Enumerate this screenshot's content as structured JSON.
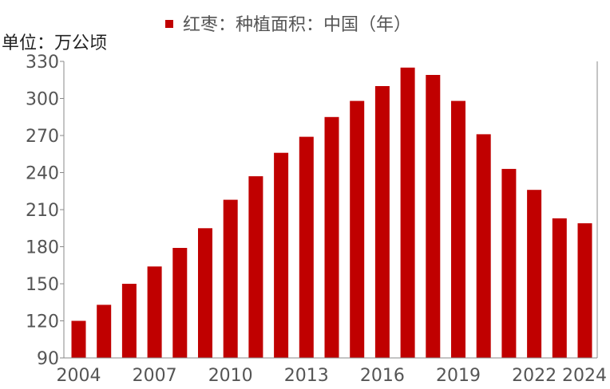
{
  "chart_data": {
    "type": "bar",
    "legend": "红枣：种植面积：中国（年）",
    "unit_label": "单位：万公顷",
    "color": "#C00000",
    "categories": [
      "2004",
      "2005",
      "2006",
      "2007",
      "2008",
      "2009",
      "2010",
      "2011",
      "2012",
      "2013",
      "2014",
      "2015",
      "2016",
      "2017",
      "2018",
      "2019",
      "2020",
      "2021",
      "2022",
      "2023",
      "2024"
    ],
    "values": [
      120,
      133,
      150,
      164,
      179,
      195,
      218,
      237,
      256,
      269,
      285,
      298,
      310,
      325,
      319,
      298,
      271,
      243,
      226,
      203,
      199
    ],
    "x_tick_labels": [
      "2004",
      "2007",
      "2010",
      "2013",
      "2016",
      "2019",
      "2022",
      "2024"
    ],
    "y_ticks": [
      90,
      120,
      150,
      180,
      210,
      240,
      270,
      300,
      330
    ],
    "ylim": [
      90,
      330
    ],
    "legend_position": "top-center",
    "grid": false
  }
}
